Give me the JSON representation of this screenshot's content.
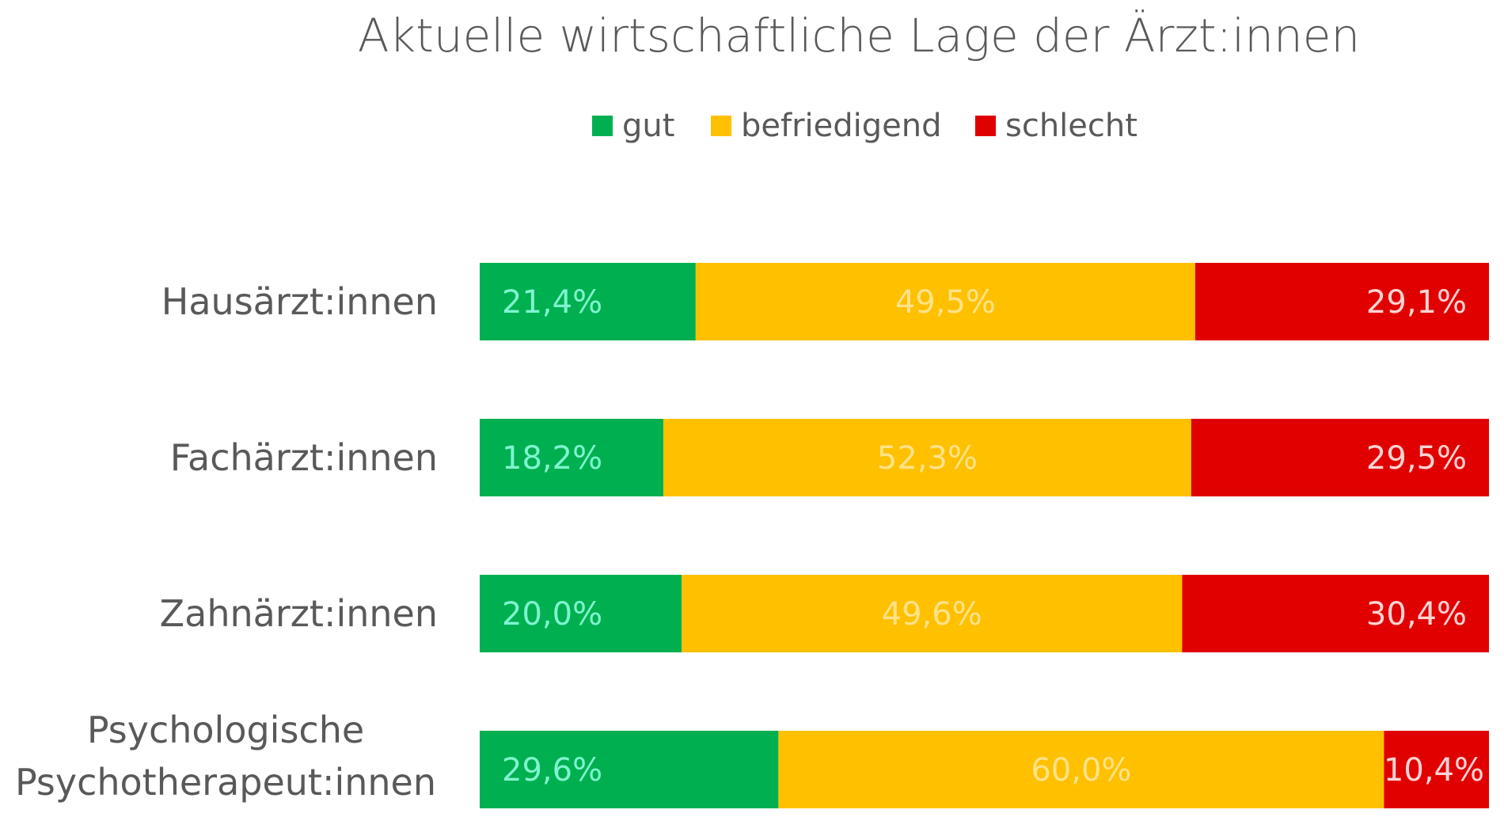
{
  "chart_data": {
    "type": "bar",
    "orientation": "horizontal",
    "stacked": true,
    "normalized": true,
    "title": "Aktuelle wirtschaftliche Lage der Ärzt:innen",
    "xlabel": "",
    "ylabel": "",
    "xlim": [
      0,
      100
    ],
    "grid": false,
    "legend_position": "top-center",
    "categories": [
      [
        "Hausärzt:innen"
      ],
      [
        "Fachärzt:innen"
      ],
      [
        "Zahnärzt:innen"
      ],
      [
        "Psychologische",
        "Psychotherapeut:innen"
      ]
    ],
    "series": [
      {
        "name": "gut",
        "color": "#00b050",
        "label_color": "#7ff5cf",
        "values": [
          21.4,
          18.2,
          20.0,
          29.6
        ],
        "labels": [
          "21,4%",
          "18,2%",
          "20,0%",
          "29,6%"
        ]
      },
      {
        "name": "befriedigend",
        "color": "#ffc000",
        "label_color": "#ffe38a",
        "values": [
          49.5,
          52.3,
          49.6,
          60.0
        ],
        "labels": [
          "49,5%",
          "52,3%",
          "49,6%",
          "60,0%"
        ]
      },
      {
        "name": "schlecht",
        "color": "#e00000",
        "label_color": "#ffd4d4",
        "values": [
          29.1,
          29.5,
          30.4,
          10.4
        ],
        "labels": [
          "29,1%",
          "29,5%",
          "30,4%",
          "10,4%"
        ]
      }
    ]
  }
}
